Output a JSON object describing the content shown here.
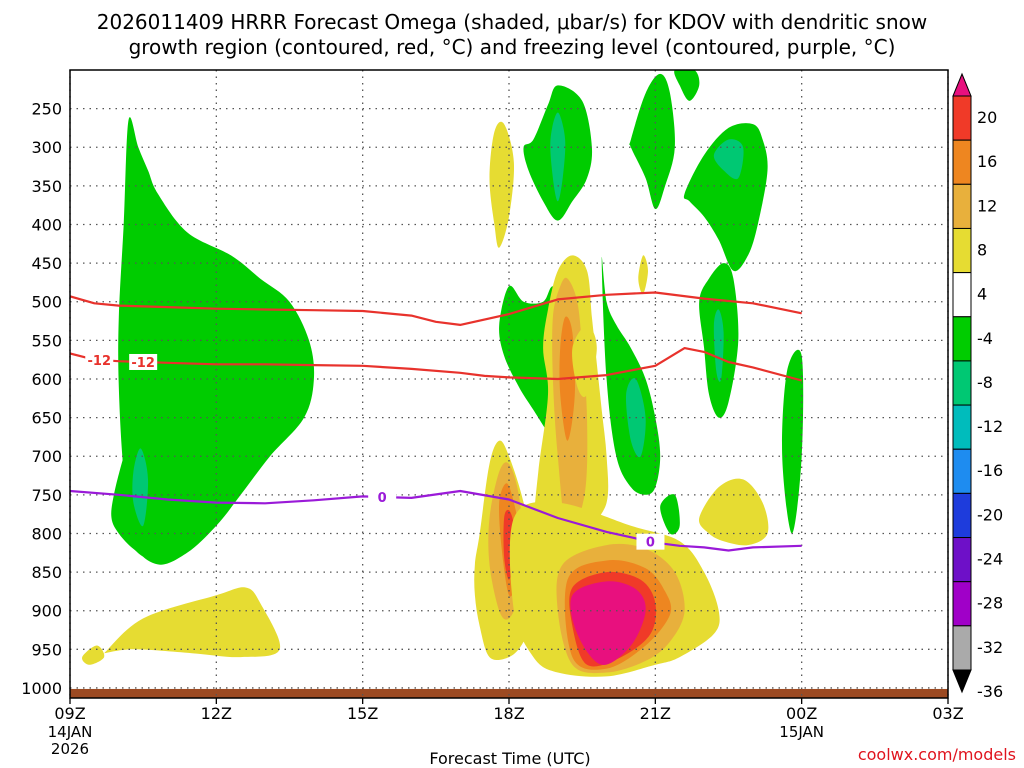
{
  "chart_data": {
    "type": "heatmap",
    "title_line1": "2026011409 HRRR Forecast Omega (shaded, μbar/s) for KDOV with dendritic snow",
    "title_line2": "growth region (contoured, red, °C) and freezing level (contoured, purple, °C)",
    "xlabel": "Forecast Time (UTC)",
    "credit": "coolwx.com/models",
    "x_hours": [
      0,
      3,
      6,
      9,
      12,
      15,
      18
    ],
    "x_tick_labels": [
      "09Z",
      "12Z",
      "15Z",
      "18Z",
      "21Z",
      "00Z",
      "03Z"
    ],
    "x_date_labels": [
      {
        "at": 0,
        "lines": [
          "14JAN",
          "2026"
        ]
      },
      {
        "at": 15,
        "lines": [
          "15JAN"
        ]
      }
    ],
    "y_levels_hpa": [
      250,
      300,
      350,
      400,
      450,
      500,
      550,
      600,
      650,
      700,
      750,
      800,
      850,
      900,
      950,
      1000
    ],
    "ylim_hpa": [
      200,
      1013
    ],
    "colorbar": {
      "labels": [
        "20",
        "16",
        "12",
        "8",
        "4",
        "-4",
        "-8",
        "-12",
        "-16",
        "-20",
        "-24",
        "-28",
        "-32",
        "-36"
      ],
      "colors": [
        "#e8107e",
        "#f03a28",
        "#ee8620",
        "#e8b03c",
        "#e6dc32",
        "#ffffff",
        "#00cc00",
        "#00c873",
        "#00bcbc",
        "#1e8cf0",
        "#1e3cdc",
        "#6e10c8",
        "#a000c8",
        "#aaaaaa",
        "#000000"
      ]
    },
    "omega_fields": [
      {
        "name": "ascent-13z-upper",
        "value": -8,
        "t": [
          1.2,
          1.4,
          1.6,
          1.8,
          2.4,
          3.3,
          3.9,
          4.5,
          4.9,
          5.0,
          4.8,
          4.1,
          3.5,
          3.0,
          2.4,
          1.8,
          1.3,
          1.1,
          1.0,
          1.0,
          1.1
        ],
        "p": [
          265,
          300,
          330,
          360,
          410,
          440,
          470,
          500,
          550,
          600,
          650,
          700,
          750,
          790,
          825,
          840,
          810,
          720,
          610,
          520,
          400
        ]
      },
      {
        "name": "ascent-13z-lower",
        "value": -8,
        "t": [
          0.9,
          1.1,
          1.3,
          1.6,
          1.9,
          2.1,
          1.9,
          1.6,
          1.3,
          1.0,
          0.85
        ],
        "p": [
          750,
          700,
          660,
          630,
          650,
          720,
          800,
          830,
          820,
          800,
          780
        ]
      },
      {
        "name": "ascent-13z-lower-core",
        "value": -12,
        "t": [
          1.3,
          1.45,
          1.6,
          1.5,
          1.3
        ],
        "p": [
          720,
          690,
          730,
          790,
          760
        ]
      },
      {
        "name": "ascent-2015z",
        "value": -8,
        "t": [
          9.7,
          9.9,
          10.2,
          10.4,
          10.6,
          10.3,
          10.1,
          9.9,
          9.5,
          9.2,
          8.9,
          8.8,
          9.0,
          9.3
        ],
        "p": [
          500,
          480,
          500,
          540,
          610,
          650,
          700,
          680,
          640,
          610,
          570,
          530,
          480,
          500
        ]
      },
      {
        "name": "ascent-2015z-tail",
        "value": -8,
        "t": [
          10.3,
          10.6,
          10.7,
          10.6,
          10.4,
          10.2
        ],
        "p": [
          610,
          600,
          650,
          720,
          740,
          680
        ]
      },
      {
        "name": "ascent-21z-upper",
        "value": -8,
        "t": [
          9.5,
          9.8,
          10.0,
          10.5,
          10.7,
          10.6,
          10.3,
          10.0,
          9.7,
          9.4,
          9.3
        ],
        "p": [
          290,
          245,
          220,
          240,
          300,
          340,
          370,
          395,
          370,
          330,
          300
        ]
      },
      {
        "name": "ascent-21z-upper-core",
        "value": -12,
        "t": [
          9.85,
          10.0,
          10.15,
          10.1,
          10.0,
          9.9
        ],
        "p": [
          290,
          255,
          290,
          340,
          370,
          340
        ]
      },
      {
        "name": "ascent-2330z-upper",
        "value": -8,
        "t": [
          11.5,
          11.8,
          12.1,
          12.3,
          12.4,
          12.2,
          12.0,
          11.8,
          11.5
        ],
        "p": [
          290,
          230,
          205,
          230,
          300,
          350,
          380,
          340,
          300
        ]
      },
      {
        "name": "ascent-00z-top",
        "value": -8,
        "t": [
          12.4,
          12.8,
          12.9,
          12.7,
          12.5
        ],
        "p": [
          200,
          200,
          220,
          240,
          220
        ]
      },
      {
        "name": "ascent-0130z-upper",
        "value": -8,
        "t": [
          12.6,
          13.0,
          13.5,
          14.0,
          14.2,
          14.3,
          14.1,
          13.9,
          13.6,
          13.3,
          13.0,
          12.7
        ],
        "p": [
          360,
          310,
          275,
          270,
          290,
          330,
          400,
          440,
          460,
          420,
          390,
          370
        ]
      },
      {
        "name": "ascent-0130z-upper-core",
        "value": -12,
        "t": [
          13.2,
          13.5,
          13.8,
          13.7,
          13.4
        ],
        "p": [
          310,
          290,
          300,
          340,
          330
        ]
      },
      {
        "name": "ascent-21z-mid",
        "value": -8,
        "t": [
          10.9,
          11.0,
          11.2,
          11.5,
          11.8,
          12.0,
          12.1,
          12.0,
          11.8,
          11.5,
          11.2,
          11.0
        ],
        "p": [
          445,
          500,
          530,
          560,
          600,
          650,
          700,
          740,
          750,
          740,
          700,
          600
        ]
      },
      {
        "name": "ascent-21z-mid-core",
        "value": -12,
        "t": [
          11.4,
          11.6,
          11.8,
          11.7,
          11.5
        ],
        "p": [
          620,
          600,
          650,
          700,
          680
        ]
      },
      {
        "name": "ascent-01z-mid",
        "value": -8,
        "t": [
          12.9,
          13.1,
          13.4,
          13.6,
          13.7,
          13.5,
          13.3,
          13.1,
          13.0
        ],
        "p": [
          500,
          470,
          450,
          470,
          550,
          630,
          650,
          620,
          560
        ]
      },
      {
        "name": "ascent-01z-mid-core",
        "value": -12,
        "t": [
          13.2,
          13.3,
          13.4,
          13.35,
          13.25
        ],
        "p": [
          530,
          510,
          540,
          600,
          590
        ]
      },
      {
        "name": "ascent-03z-edge",
        "value": -8,
        "t": [
          14.7,
          15.0,
          15.0,
          14.8,
          14.6
        ],
        "p": [
          590,
          570,
          700,
          800,
          700
        ]
      },
      {
        "name": "ascent-00z-small",
        "value": -8,
        "t": [
          12.1,
          12.4,
          12.5,
          12.3
        ],
        "p": [
          765,
          750,
          790,
          800
        ]
      },
      {
        "name": "descent-1230z-low",
        "value": 4,
        "t": [
          0.7,
          1.5,
          3.0,
          3.6,
          3.9,
          4.3,
          3.5,
          2.5,
          1.3,
          0.7
        ],
        "p": [
          955,
          910,
          880,
          870,
          890,
          950,
          960,
          955,
          950,
          955
        ]
      },
      {
        "name": "descent-10z-dot",
        "value": 4,
        "t": [
          0.25,
          0.55,
          0.7,
          0.4
        ],
        "p": [
          960,
          945,
          960,
          970
        ]
      },
      {
        "name": "descent-19z-upper",
        "value": 4,
        "t": [
          8.6,
          8.7,
          8.9,
          9.1,
          9.0,
          8.8,
          8.7
        ],
        "p": [
          340,
          280,
          270,
          320,
          390,
          430,
          400
        ]
      },
      {
        "name": "descent-19z",
        "value": 4,
        "t": [
          8.4,
          8.6,
          8.8,
          9.0,
          9.3,
          9.5,
          9.5,
          9.3,
          9.0,
          8.6,
          8.4,
          8.3,
          8.3
        ],
        "p": [
          800,
          710,
          680,
          700,
          760,
          830,
          900,
          940,
          960,
          960,
          920,
          880,
          840
        ]
      },
      {
        "name": "descent-19z-8",
        "value": 8,
        "t": [
          8.6,
          8.8,
          9.0,
          9.2,
          9.3,
          9.2,
          9.0,
          8.8,
          8.6
        ],
        "p": [
          780,
          720,
          710,
          750,
          820,
          880,
          910,
          900,
          840
        ]
      },
      {
        "name": "descent-19z-12",
        "value": 12,
        "t": [
          8.8,
          8.95,
          9.1,
          9.2,
          9.15,
          9.0,
          8.85
        ],
        "p": [
          760,
          735,
          760,
          800,
          860,
          880,
          820
        ]
      },
      {
        "name": "descent-19z-16",
        "value": 16,
        "t": [
          8.9,
          9.0,
          9.1,
          9.1,
          9.0,
          8.9
        ],
        "p": [
          780,
          770,
          790,
          830,
          860,
          830
        ]
      },
      {
        "name": "descent-21z-column",
        "value": 4,
        "t": [
          9.8,
          10.0,
          10.3,
          10.6,
          10.7,
          10.8,
          10.9,
          11.0,
          11.0,
          10.6,
          10.2,
          9.8,
          9.6,
          9.5,
          9.6,
          9.8,
          9.7
        ],
        "p": [
          510,
          460,
          440,
          460,
          520,
          580,
          640,
          700,
          760,
          800,
          850,
          880,
          860,
          800,
          720,
          620,
          560
        ]
      },
      {
        "name": "descent-21z-column-8",
        "value": 8,
        "t": [
          9.9,
          10.05,
          10.2,
          10.4,
          10.5,
          10.6,
          10.55,
          10.2,
          10.0,
          9.9
        ],
        "p": [
          520,
          480,
          470,
          500,
          560,
          650,
          750,
          800,
          700,
          600
        ]
      },
      {
        "name": "descent-21z-column-12",
        "value": 12,
        "t": [
          10.05,
          10.15,
          10.3,
          10.35,
          10.2,
          10.05
        ],
        "p": [
          560,
          520,
          540,
          620,
          680,
          620
        ]
      },
      {
        "name": "descent-2230z-low",
        "value": 4,
        "t": [
          9.1,
          10.0,
          11.5,
          12.5,
          13.0,
          13.3,
          13.2,
          12.5,
          12.0,
          11.0,
          10.0,
          9.5,
          9.1
        ],
        "p": [
          780,
          760,
          790,
          810,
          850,
          900,
          930,
          960,
          970,
          985,
          980,
          960,
          900
        ]
      },
      {
        "name": "descent-2230z-low-8",
        "value": 8,
        "t": [
          10.1,
          11.0,
          11.8,
          12.4,
          12.6,
          12.3,
          11.8,
          11.0,
          10.3,
          10.0
        ],
        "p": [
          840,
          815,
          820,
          850,
          900,
          940,
          965,
          980,
          970,
          900
        ]
      },
      {
        "name": "descent-2230z-low-12",
        "value": 12,
        "t": [
          10.2,
          11.0,
          11.8,
          12.2,
          12.3,
          11.8,
          11.0,
          10.3
        ],
        "p": [
          860,
          835,
          845,
          875,
          905,
          945,
          975,
          960
        ]
      },
      {
        "name": "descent-2230z-low-16",
        "value": 16,
        "t": [
          10.3,
          11.0,
          11.7,
          12.0,
          11.9,
          11.3,
          10.6,
          10.3
        ],
        "p": [
          870,
          850,
          860,
          890,
          930,
          960,
          970,
          920
        ]
      },
      {
        "name": "descent-2230z-low-20",
        "value": 20,
        "t": [
          10.3,
          11.0,
          11.6,
          11.8,
          11.5,
          10.9,
          10.4
        ],
        "p": [
          880,
          862,
          872,
          900,
          945,
          970,
          930
        ]
      },
      {
        "name": "descent-0130z-low",
        "value": 4,
        "t": [
          12.9,
          13.3,
          13.8,
          14.2,
          14.3,
          13.9,
          13.4,
          13.1
        ],
        "p": [
          780,
          740,
          730,
          760,
          800,
          815,
          810,
          800
        ]
      },
      {
        "name": "descent-2330z-dot",
        "value": 4,
        "t": [
          11.65,
          11.75,
          11.85,
          11.75
        ],
        "p": [
          470,
          440,
          460,
          490
        ]
      },
      {
        "name": "descent-2330z-mid",
        "value": 4,
        "t": [
          10.3,
          10.6,
          10.8,
          10.6,
          10.4
        ],
        "p": [
          560,
          530,
          560,
          620,
          610
        ]
      }
    ],
    "series": [
      {
        "name": "-12C isotherm (upper)",
        "color": "#e8322c",
        "label": "",
        "label_at": null,
        "x": [
          0,
          0.5,
          1,
          2,
          3,
          4,
          5,
          6,
          7,
          7.5,
          8,
          9,
          10,
          11,
          12,
          13,
          14,
          15
        ],
        "p": [
          493,
          502,
          505,
          507,
          509,
          510,
          511,
          512,
          518,
          526,
          530,
          516,
          497,
          491,
          488,
          496,
          502,
          515
        ]
      },
      {
        "name": "-12C isotherm (lower)",
        "color": "#e8322c",
        "label": "-12",
        "label_at": [
          0.6,
          1.5
        ],
        "x": [
          0,
          0.5,
          1,
          2,
          3,
          4,
          5,
          6,
          7,
          8,
          8.5,
          9,
          10,
          11,
          12,
          12.6,
          13,
          13.5,
          14,
          15
        ],
        "p": [
          567,
          575,
          577,
          579,
          581,
          581,
          582,
          583,
          587,
          592,
          596,
          598,
          600,
          595,
          583,
          560,
          565,
          578,
          585,
          602
        ]
      },
      {
        "name": "0C freezing level",
        "color": "#9a1ad8",
        "label": "0",
        "label_at": [
          6.4,
          11.9
        ],
        "x": [
          0,
          1,
          2,
          3,
          4,
          5,
          6,
          7,
          8,
          9,
          10,
          11,
          12,
          12.5,
          13,
          13.5,
          14,
          15
        ],
        "p": [
          745,
          750,
          756,
          760,
          761,
          757,
          752,
          754,
          745,
          756,
          780,
          798,
          812,
          816,
          818,
          822,
          818,
          816
        ]
      }
    ]
  }
}
